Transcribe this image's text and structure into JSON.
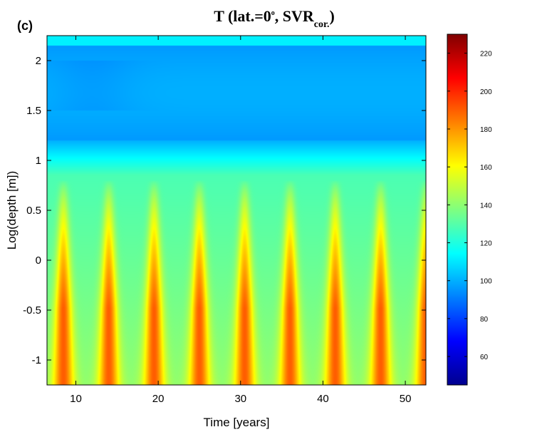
{
  "panel_label": "(c)",
  "title_main": "T (lat.=0",
  "title_degree": "o",
  "title_sep": ", SVR",
  "title_sub": "cor.",
  "title_close": ")",
  "chart_data": {
    "type": "heatmap",
    "xlabel": "Time [years]",
    "ylabel": "Log(depth [m])",
    "xlim": [
      6.5,
      52.5
    ],
    "ylim": [
      -1.25,
      2.25
    ],
    "x_ticks": [
      10,
      20,
      30,
      40,
      50
    ],
    "x_tick_labels": [
      "10",
      "20",
      "30",
      "40",
      "50"
    ],
    "y_ticks": [
      -1,
      -0.5,
      0,
      0.5,
      1,
      1.5,
      2
    ],
    "y_tick_labels": [
      "-1",
      "-0.5",
      "0",
      "0.5",
      "1",
      "1.5",
      "2"
    ],
    "colorbar": {
      "range": [
        45,
        230
      ],
      "ticks": [
        60,
        80,
        100,
        120,
        140,
        160,
        180,
        200,
        220
      ],
      "tick_labels": [
        "60",
        "80",
        "100",
        "120",
        "140",
        "160",
        "180",
        "200",
        "220"
      ],
      "colormap": "jet"
    },
    "features": {
      "surface_layer_value": 105,
      "mid_layer_value": 108,
      "background_deep_value": 140,
      "oscillation_peak_years": [
        8.5,
        14,
        19.5,
        25,
        30.5,
        36,
        41.5,
        47,
        52.5
      ],
      "peak_value": 190,
      "peak_top_log_depth": 0.8
    }
  }
}
